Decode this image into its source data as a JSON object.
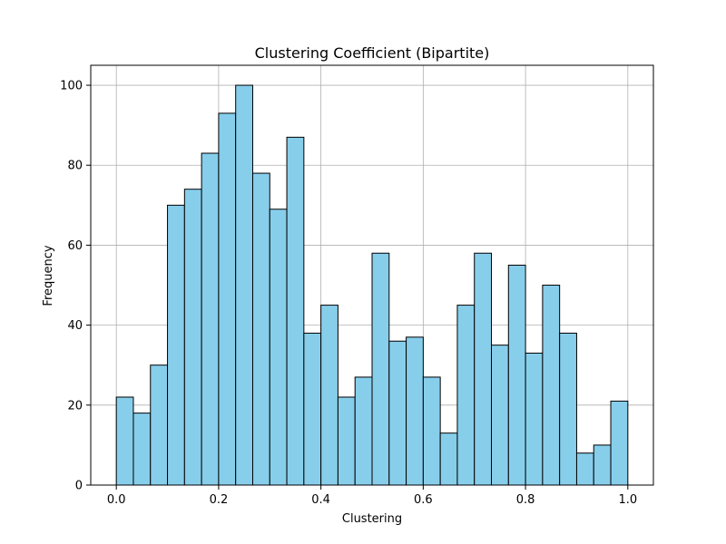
{
  "chart_data": {
    "type": "bar",
    "title": "Clustering Coefficient (Bipartite)",
    "xlabel": "Clustering",
    "ylabel": "Frequency",
    "bin_range": [
      0.0,
      1.0
    ],
    "bin_count": 30,
    "values": [
      22,
      18,
      30,
      70,
      74,
      83,
      93,
      100,
      78,
      69,
      87,
      38,
      45,
      22,
      27,
      58,
      36,
      37,
      27,
      13,
      45,
      58,
      35,
      55,
      33,
      50,
      38,
      8,
      10,
      21
    ],
    "xlim": [
      -0.05,
      1.05
    ],
    "ylim": [
      0,
      105
    ],
    "xticks": [
      0.0,
      0.2,
      0.4,
      0.6,
      0.8,
      1.0
    ],
    "xtick_labels": [
      "0.0",
      "0.2",
      "0.4",
      "0.6",
      "0.8",
      "1.0"
    ],
    "yticks": [
      0,
      20,
      40,
      60,
      80,
      100
    ],
    "ytick_labels": [
      "0",
      "20",
      "40",
      "60",
      "80",
      "100"
    ],
    "grid": true,
    "bar_color": "#87ceeb",
    "edge_color": "#000000"
  }
}
